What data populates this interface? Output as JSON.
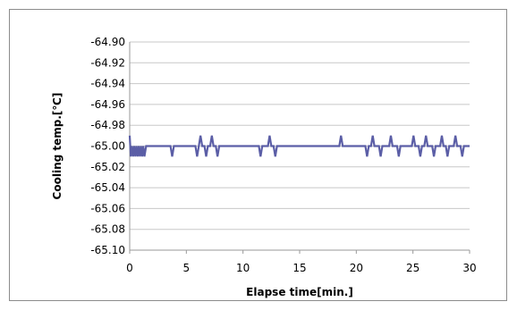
{
  "chart_data": {
    "type": "line",
    "title": "",
    "xlabel": "Elapse time[min.]",
    "ylabel": "Cooling temp.[℃]",
    "xlim": [
      0,
      30
    ],
    "ylim": [
      -65.1,
      -64.9
    ],
    "x_ticks": [
      0,
      5,
      10,
      15,
      20,
      25,
      30
    ],
    "x_tick_labels": [
      "0",
      "5",
      "10",
      "15",
      "20",
      "25",
      "30"
    ],
    "y_ticks": [
      -64.9,
      -64.92,
      -64.94,
      -64.96,
      -64.98,
      -65.0,
      -65.02,
      -65.04,
      -65.06,
      -65.08,
      -65.1
    ],
    "y_tick_labels": [
      "-64.90",
      "-64.92",
      "-64.94",
      "-64.96",
      "-64.98",
      "-65.00",
      "-65.02",
      "-65.04",
      "-65.06",
      "-65.08",
      "-65.10"
    ],
    "grid": true,
    "legend": "none",
    "line_color": "#5b5ea6",
    "baseline_value": -65.0,
    "series": [
      {
        "x": [
          0.0,
          0.05,
          0.1,
          0.2,
          0.3,
          0.4,
          0.5,
          0.6,
          0.7,
          0.8,
          0.9,
          1.0,
          1.1,
          1.2,
          1.3,
          1.45,
          1.6,
          3.6,
          3.75,
          3.9,
          5.8,
          5.95,
          6.1,
          6.25,
          6.4,
          6.6,
          6.75,
          6.9,
          7.1,
          7.25,
          7.4,
          7.6,
          7.75,
          7.9,
          11.4,
          11.55,
          11.7,
          12.2,
          12.35,
          12.5,
          12.7,
          12.85,
          13.0,
          18.5,
          18.65,
          18.8,
          20.8,
          20.95,
          21.1,
          21.3,
          21.45,
          21.6,
          22.0,
          22.15,
          22.3,
          22.9,
          23.05,
          23.2,
          23.6,
          23.75,
          23.9,
          24.9,
          25.05,
          25.2,
          25.5,
          25.65,
          25.8,
          26.0,
          26.15,
          26.3,
          26.7,
          26.85,
          27.0,
          27.4,
          27.55,
          27.7,
          27.9,
          28.05,
          28.2,
          28.6,
          28.75,
          28.9,
          29.2,
          29.35,
          29.5,
          30.0
        ],
        "y": [
          -64.99,
          -65.0,
          -65.01,
          -65.0,
          -65.01,
          -65.0,
          -65.01,
          -65.0,
          -65.01,
          -65.0,
          -65.01,
          -65.0,
          -65.01,
          -65.0,
          -65.01,
          -65.0,
          -65.0,
          -65.0,
          -65.01,
          -65.0,
          -65.0,
          -65.01,
          -65.0,
          -64.99,
          -65.0,
          -65.0,
          -65.01,
          -65.0,
          -65.0,
          -64.99,
          -65.0,
          -65.0,
          -65.01,
          -65.0,
          -65.0,
          -65.01,
          -65.0,
          -65.0,
          -64.99,
          -65.0,
          -65.0,
          -65.01,
          -65.0,
          -65.0,
          -64.99,
          -65.0,
          -65.0,
          -65.01,
          -65.0,
          -65.0,
          -64.99,
          -65.0,
          -65.0,
          -65.01,
          -65.0,
          -65.0,
          -64.99,
          -65.0,
          -65.0,
          -65.01,
          -65.0,
          -65.0,
          -64.99,
          -65.0,
          -65.0,
          -65.01,
          -65.0,
          -65.0,
          -64.99,
          -65.0,
          -65.0,
          -65.01,
          -65.0,
          -65.0,
          -64.99,
          -65.0,
          -65.0,
          -65.01,
          -65.0,
          -65.0,
          -64.99,
          -65.0,
          -65.0,
          -65.01,
          -65.0,
          -65.0
        ]
      }
    ]
  }
}
